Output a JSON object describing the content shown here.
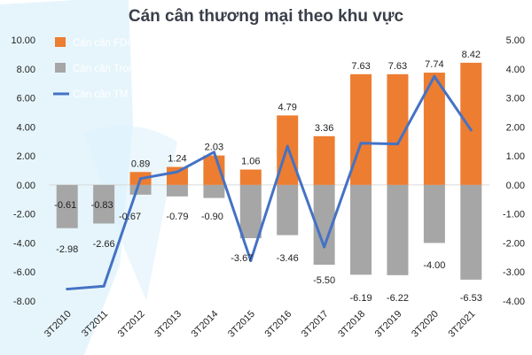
{
  "title": "Cán cân thương mại theo khu vực",
  "colors": {
    "fdi": "#ED7D31",
    "domestic": "#A6A6A6",
    "trade": "#4472C4",
    "bg_decor": "#DDF1FB"
  },
  "chart_data": {
    "type": "bar",
    "title": "Cán cân thương mại theo khu vực",
    "categories": [
      "3T2010",
      "3T2011",
      "3T2012",
      "3T2013",
      "3T2014",
      "3T2015",
      "3T2016",
      "3T2017",
      "3T2018",
      "3T2019",
      "3T2020",
      "3T2021"
    ],
    "series": [
      {
        "name": "Cán cân FDI",
        "type": "bar",
        "axis": "left",
        "values": [
          -0.61,
          -0.83,
          0.89,
          1.24,
          2.03,
          1.06,
          4.79,
          3.36,
          7.63,
          7.63,
          7.74,
          8.42
        ],
        "labels": [
          "-0.61",
          "-0.83",
          "0.89",
          "1.24",
          "2.03",
          "1.06",
          "4.79",
          "3.36",
          "7.63",
          "7.63",
          "7.74",
          "8.42"
        ]
      },
      {
        "name": "Cán cân Trong nước",
        "type": "bar",
        "axis": "left",
        "values": [
          -2.98,
          -2.66,
          -0.67,
          -0.79,
          -0.9,
          -3.67,
          -3.46,
          -5.5,
          -6.19,
          -6.22,
          -4.0,
          -6.53
        ],
        "labels": [
          "-2.98",
          "-2.66",
          "-0.67",
          "-0.79",
          "-0.90",
          "-3.67",
          "-3.46",
          "-5.50",
          "-6.19",
          "-6.22",
          "-4.00",
          "-6.53"
        ]
      },
      {
        "name": "Cán cân TM",
        "type": "line",
        "axis": "right",
        "values": [
          -3.59,
          -3.49,
          0.22,
          0.45,
          1.13,
          -2.61,
          1.33,
          -2.14,
          1.44,
          1.41,
          3.74,
          1.89
        ]
      }
    ],
    "y_left": {
      "ylim": [
        -8,
        10
      ],
      "ticks": [
        10,
        8,
        6,
        4,
        2,
        0,
        -2,
        -4,
        -6,
        -8
      ],
      "tick_labels": [
        "10.00",
        "8.00",
        "6.00",
        "4.00",
        "2.00",
        "0.00",
        "-2.00",
        "-4.00",
        "-6.00",
        "-8.00"
      ]
    },
    "y_right": {
      "ylim": [
        -4,
        5
      ],
      "ticks": [
        5,
        4,
        3,
        2,
        1,
        0,
        -1,
        -2,
        -3,
        -4
      ],
      "tick_labels": [
        "5.00",
        "4.00",
        "3.00",
        "2.00",
        "1.00",
        "0.00",
        "-1.00",
        "-2.00",
        "-3.00",
        "-4.00"
      ]
    },
    "legend_position": "top-left",
    "grid": false
  }
}
